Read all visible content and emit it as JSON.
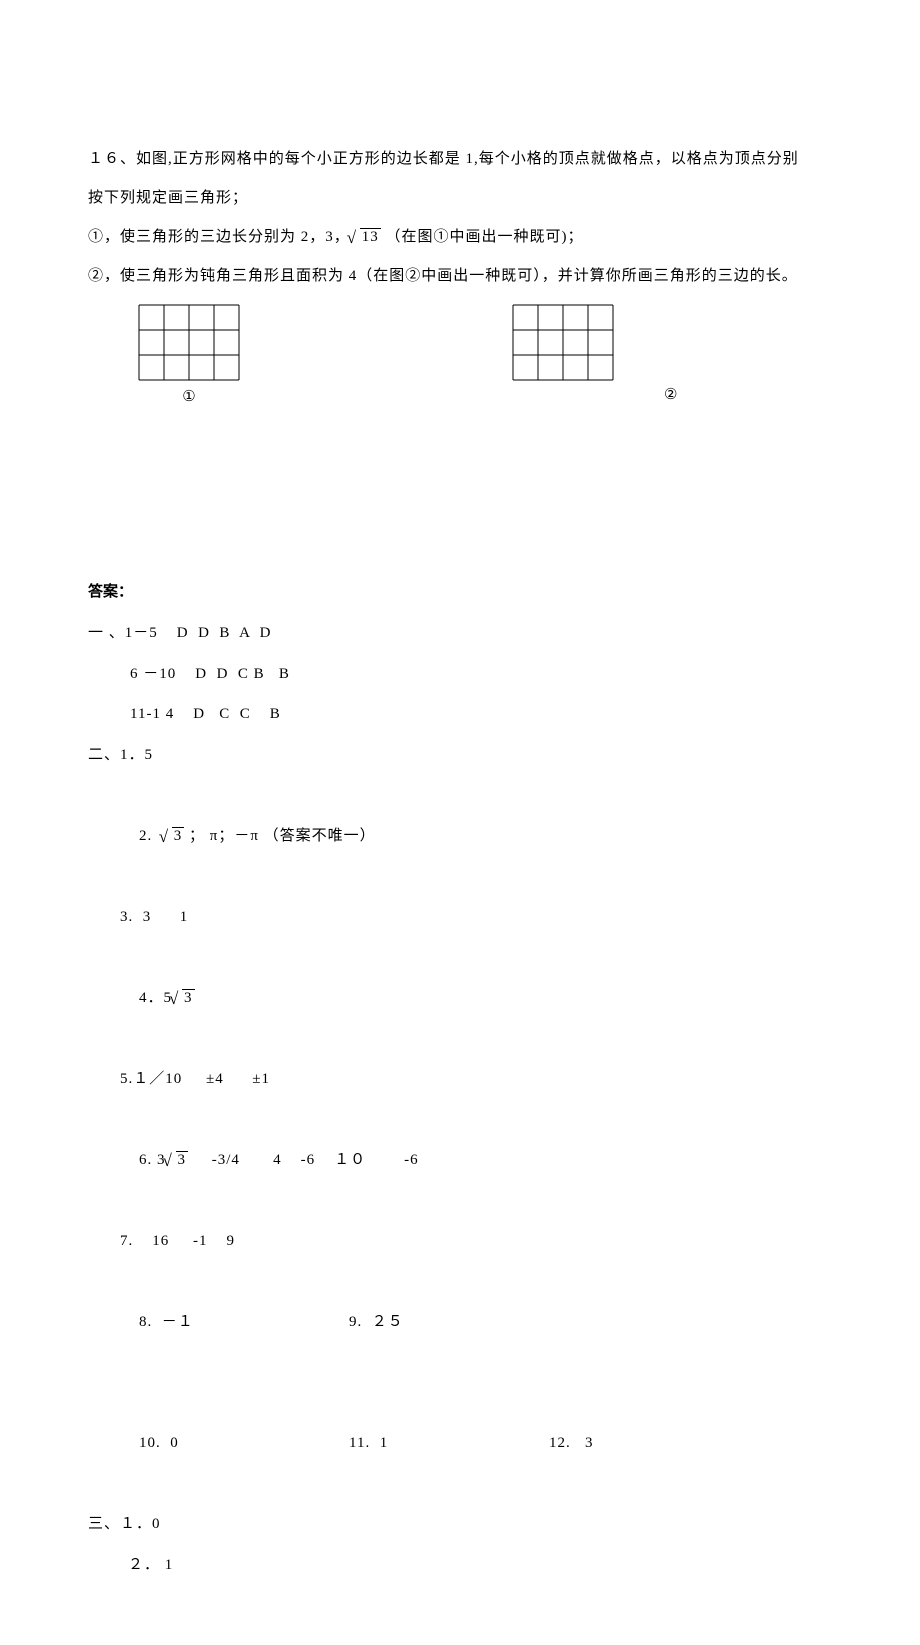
{
  "question": {
    "number": "１６",
    "intro_l1": "、如图,正方形网格中的每个小正方形的边长都是 1,每个小格的顶点就做格点，以格点为顶点分别",
    "intro_l2": "按下列规定画三角形；",
    "part1_pre": "①，使三角形的三边长分别为 2，3，",
    "sqrt1": "13",
    "part1_post": " （在图①中画出一种既可)；",
    "part2": "②，使三角形为钝角三角形且面积为 4（在图②中画出一种既可），并计算你所画三角形的三边的长。",
    "label1": "①",
    "label2": "②"
  },
  "grid": {
    "cols": 4,
    "rows": 3,
    "cell_size": 25,
    "stroke": "#000000",
    "stroke_width": 1
  },
  "answers": {
    "heading": "答案：",
    "sec1": {
      "l1": "一 、1－5    D  D  B  A  D",
      "l2": "6 －10    D  D  C B   B",
      "l3": "11-1 4    D   C  C    B"
    },
    "sec2": {
      "l1": "二、1．5",
      "l2_pre": "2.  ",
      "l2_sqrt": "3",
      "l2_post": " ； π；－π （答案不唯一）",
      "l3": "3.  3      1",
      "l4_pre": "4．5",
      "l4_sqrt": "3",
      "l5": "5.１／10     ±4      ±1",
      "l6_pre": "6. 3",
      "l6_sqrt": "3",
      "l6_post": "     -3/4       4    -6    １０        -6",
      "l7": "7.    16     -1    9",
      "l8a": "8.  －１",
      "l8b": "9.  ２５",
      "l9a": "10.  0",
      "l9b": "11.  1",
      "l9c": "12.   3"
    },
    "sec3": {
      "l1": "三、１．0",
      "l2": "２． 1"
    }
  }
}
